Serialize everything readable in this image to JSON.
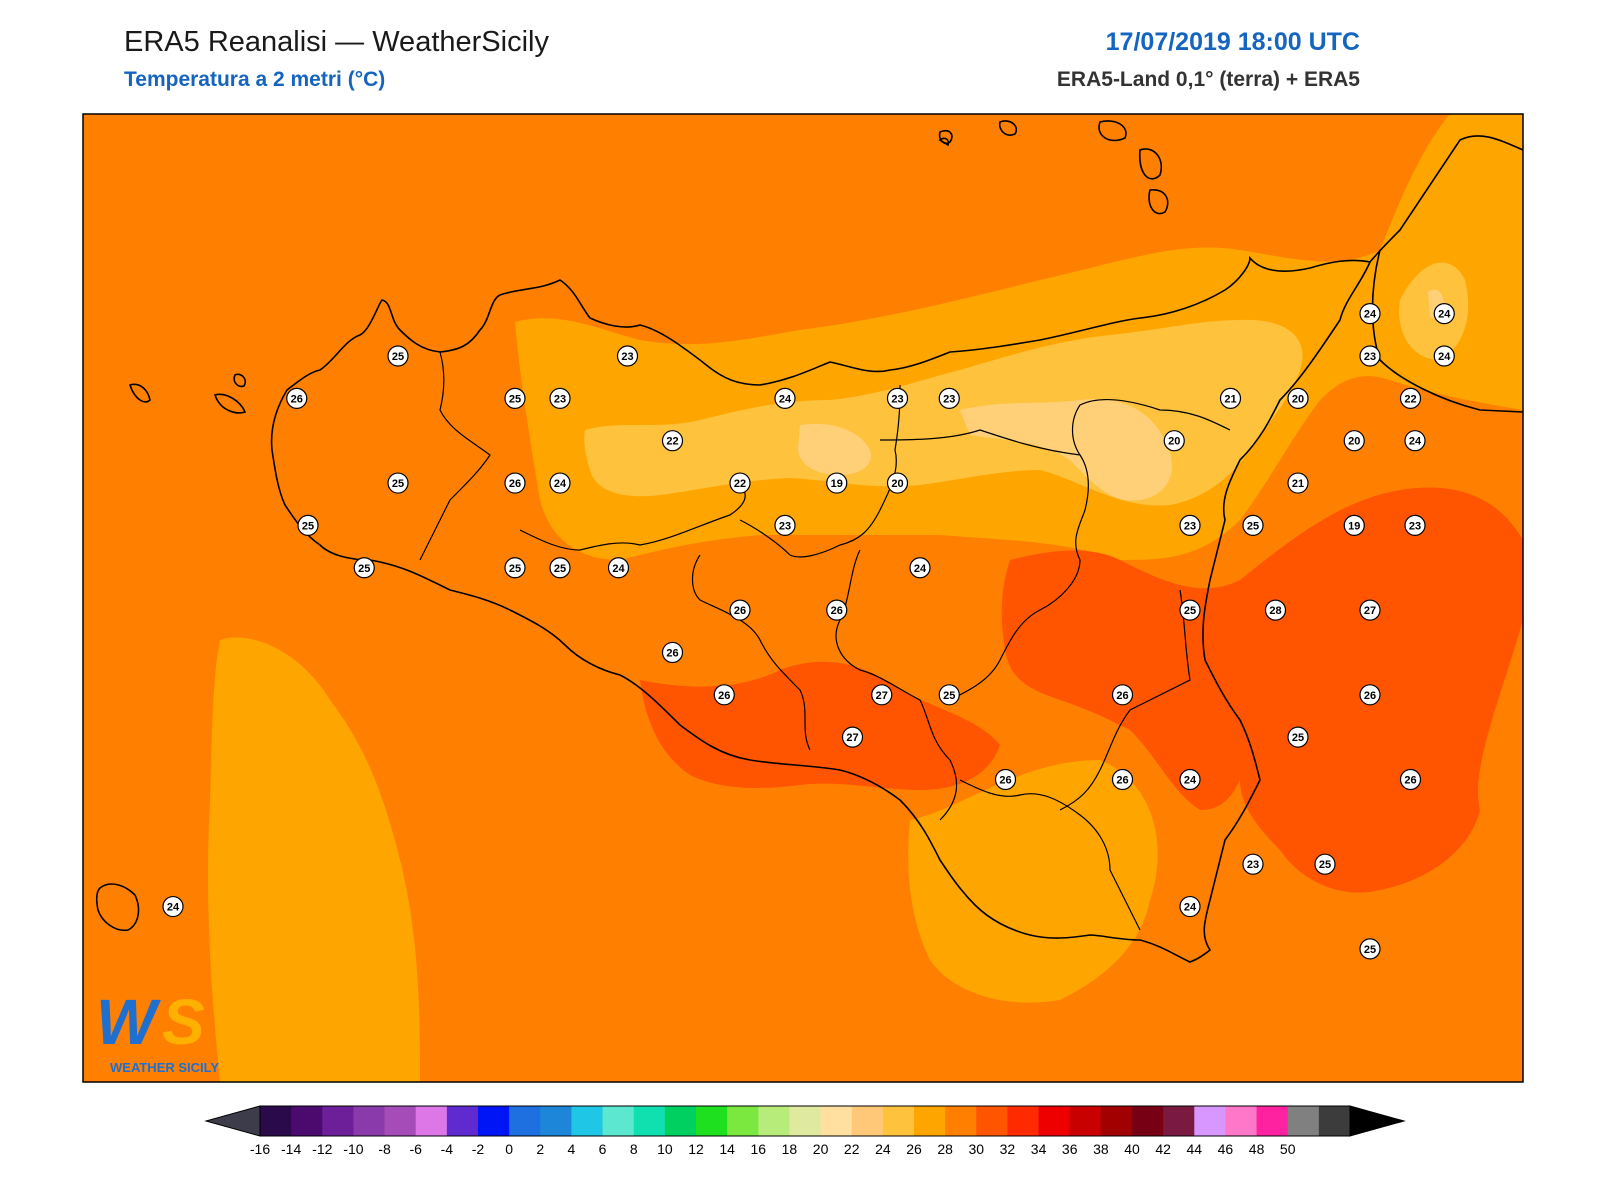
{
  "header": {
    "title": "ERA5 Reanalisi — WeatherSicily",
    "subtitle": "Temperatura a 2 metri (°C)",
    "datetime": "17/07/2019 18:00 UTC",
    "source": "ERA5-Land 0,1° (terra) + ERA5"
  },
  "logo": {
    "letters": "WS",
    "text": "WEATHER SICILY"
  },
  "colorbar": {
    "labels": [
      "-16",
      "-14",
      "-12",
      "-10",
      "-8",
      "-6",
      "-4",
      "-2",
      "0",
      "2",
      "4",
      "6",
      "8",
      "10",
      "12",
      "14",
      "16",
      "18",
      "20",
      "22",
      "24",
      "26",
      "28",
      "30",
      "32",
      "34",
      "36",
      "38",
      "40",
      "42",
      "44",
      "46",
      "48",
      "50"
    ],
    "colors": [
      "#2a0a4a",
      "#4a0a6e",
      "#6d1f9a",
      "#8b3aac",
      "#a64cb8",
      "#dd77e8",
      "#5f2bd0",
      "#0015f5",
      "#1e6fe0",
      "#1d86d8",
      "#1fc6e6",
      "#5ce8d0",
      "#10e0b0",
      "#00d060",
      "#1ee01e",
      "#7ae83e",
      "#b8ec7a",
      "#dfeaa0",
      "#ffe0a0",
      "#ffc878",
      "#ffc23c",
      "#ffa500",
      "#ff8000",
      "#ff5500",
      "#ff2a00",
      "#ee0000",
      "#c80000",
      "#a00000",
      "#780014",
      "#7a1a40",
      "#d896ff",
      "#ff77c8",
      "#ff22a0",
      "#808080",
      "#3c3c3c"
    ]
  },
  "palette": {
    "ocean": "#ff8000",
    "band24": "#ffa500",
    "band22": "#ffc23c",
    "band20": "#ffd078",
    "band26": "#ff5500",
    "coast": "#000000"
  },
  "stations": [
    {
      "v": "25",
      "lon": 13.4,
      "lat": 38.2
    },
    {
      "v": "26",
      "lon": 12.95,
      "lat": 38.06
    },
    {
      "v": "25",
      "lon": 13.92,
      "lat": 38.06
    },
    {
      "v": "23",
      "lon": 14.42,
      "lat": 38.2
    },
    {
      "v": "23",
      "lon": 14.12,
      "lat": 38.06
    },
    {
      "v": "24",
      "lon": 15.12,
      "lat": 38.06
    },
    {
      "v": "23",
      "lon": 15.62,
      "lat": 38.06
    },
    {
      "v": "23",
      "lon": 15.85,
      "lat": 38.06
    },
    {
      "v": "21",
      "lon": 17.1,
      "lat": 38.06
    },
    {
      "v": "20",
      "lon": 17.4,
      "lat": 38.06
    },
    {
      "v": "22",
      "lon": 14.62,
      "lat": 37.92
    },
    {
      "v": "20",
      "lon": 16.85,
      "lat": 37.92
    },
    {
      "v": "20",
      "lon": 17.65,
      "lat": 37.92
    },
    {
      "v": "24",
      "lon": 17.92,
      "lat": 37.92
    },
    {
      "v": "25",
      "lon": 13.4,
      "lat": 37.78
    },
    {
      "v": "26",
      "lon": 13.92,
      "lat": 37.78
    },
    {
      "v": "24",
      "lon": 14.12,
      "lat": 37.78
    },
    {
      "v": "22",
      "lon": 14.92,
      "lat": 37.78
    },
    {
      "v": "19",
      "lon": 15.35,
      "lat": 37.78
    },
    {
      "v": "20",
      "lon": 15.62,
      "lat": 37.78
    },
    {
      "v": "21",
      "lon": 17.4,
      "lat": 37.78
    },
    {
      "v": "25",
      "lon": 13.0,
      "lat": 37.64
    },
    {
      "v": "23",
      "lon": 15.12,
      "lat": 37.64
    },
    {
      "v": "23",
      "lon": 16.92,
      "lat": 37.64
    },
    {
      "v": "25",
      "lon": 17.2,
      "lat": 37.64
    },
    {
      "v": "19",
      "lon": 17.65,
      "lat": 37.64
    },
    {
      "v": "23",
      "lon": 17.92,
      "lat": 37.64
    },
    {
      "v": "25",
      "lon": 13.25,
      "lat": 37.5
    },
    {
      "v": "25",
      "lon": 13.92,
      "lat": 37.5
    },
    {
      "v": "25",
      "lon": 14.12,
      "lat": 37.5
    },
    {
      "v": "24",
      "lon": 14.38,
      "lat": 37.5
    },
    {
      "v": "24",
      "lon": 15.72,
      "lat": 37.5
    },
    {
      "v": "26",
      "lon": 14.92,
      "lat": 37.36
    },
    {
      "v": "26",
      "lon": 15.35,
      "lat": 37.36
    },
    {
      "v": "25",
      "lon": 16.92,
      "lat": 37.36
    },
    {
      "v": "28",
      "lon": 17.3,
      "lat": 37.36
    },
    {
      "v": "27",
      "lon": 17.72,
      "lat": 37.36
    },
    {
      "v": "26",
      "lon": 14.62,
      "lat": 37.22
    },
    {
      "v": "26",
      "lon": 14.85,
      "lat": 37.08
    },
    {
      "v": "27",
      "lon": 15.55,
      "lat": 37.08
    },
    {
      "v": "25",
      "lon": 15.85,
      "lat": 37.08
    },
    {
      "v": "26",
      "lon": 16.62,
      "lat": 37.08
    },
    {
      "v": "26",
      "lon": 17.72,
      "lat": 37.08
    },
    {
      "v": "27",
      "lon": 15.42,
      "lat": 36.94
    },
    {
      "v": "25",
      "lon": 17.4,
      "lat": 36.94
    },
    {
      "v": "26",
      "lon": 16.1,
      "lat": 36.8
    },
    {
      "v": "26",
      "lon": 16.62,
      "lat": 36.8
    },
    {
      "v": "24",
      "lon": 16.92,
      "lat": 36.8
    },
    {
      "v": "26",
      "lon": 17.9,
      "lat": 36.8
    },
    {
      "v": "23",
      "lon": 17.2,
      "lat": 36.52
    },
    {
      "v": "25",
      "lon": 17.52,
      "lat": 36.52
    },
    {
      "v": "24",
      "lon": 12.4,
      "lat": 36.38
    },
    {
      "v": "24",
      "lon": 16.92,
      "lat": 36.38
    },
    {
      "v": "25",
      "lon": 17.72,
      "lat": 36.24
    },
    {
      "v": "24",
      "lon": 17.72,
      "lat": 38.34
    },
    {
      "v": "24",
      "lon": 18.05,
      "lat": 38.34
    },
    {
      "v": "23",
      "lon": 17.72,
      "lat": 38.2
    },
    {
      "v": "24",
      "lon": 18.05,
      "lat": 38.2
    },
    {
      "v": "22",
      "lon": 17.9,
      "lat": 38.06
    }
  ]
}
